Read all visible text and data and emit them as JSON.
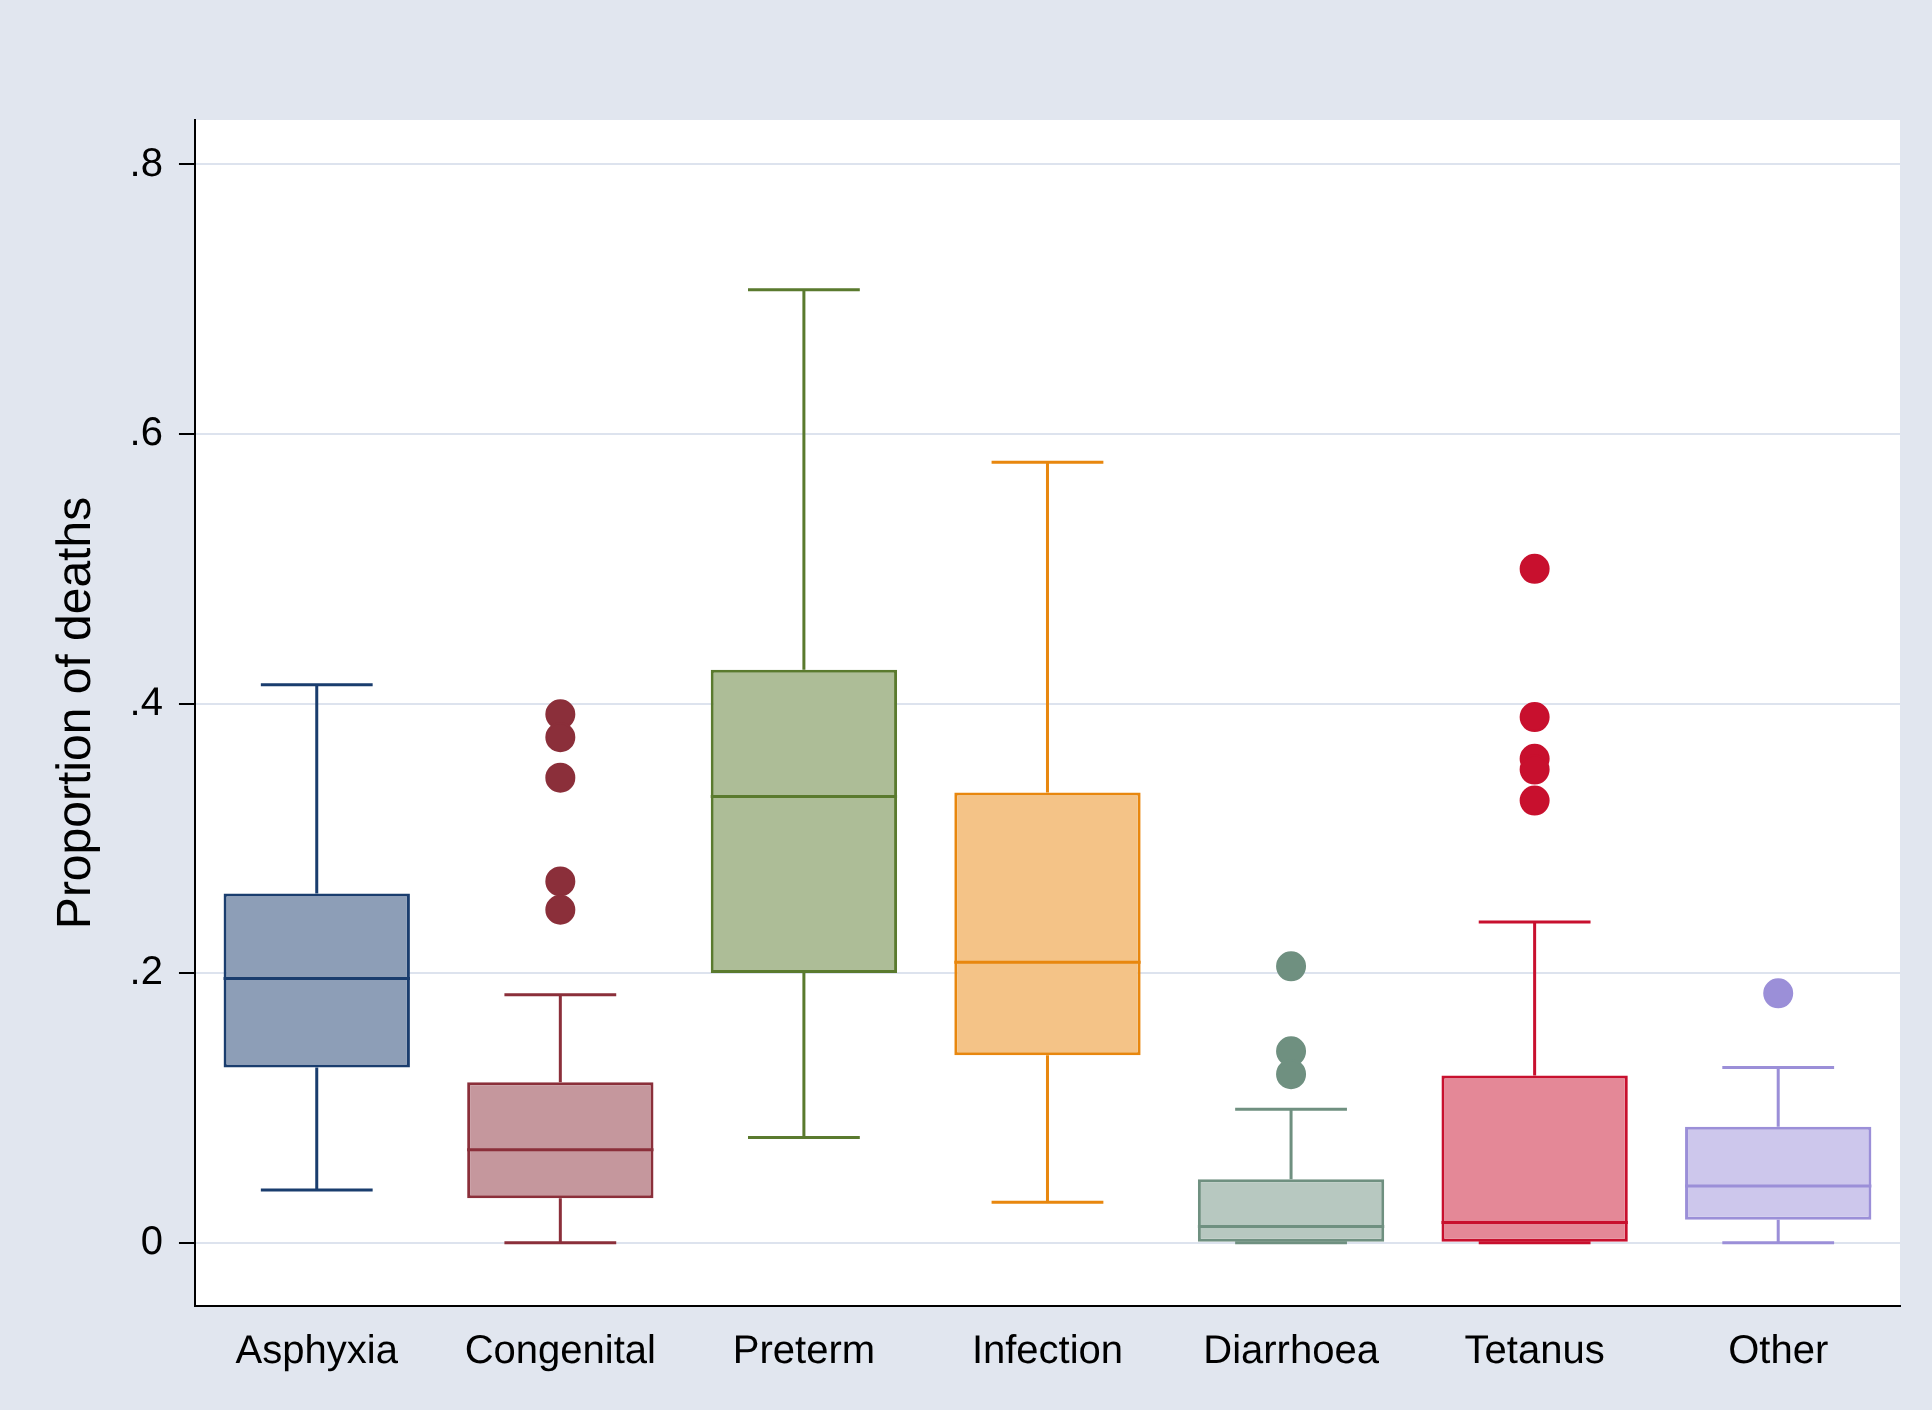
{
  "chart_data": {
    "type": "box",
    "ylabel": "Proportion of deaths",
    "categories": [
      "Asphyxia",
      "Congenital",
      "Preterm",
      "Infection",
      "Diarrhoea",
      "Tetanus",
      "Other"
    ],
    "colors": [
      "#1a3d6e",
      "#8b2f3a",
      "#5a7a2e",
      "#e8870e",
      "#6f9080",
      "#c8102e",
      "#9b8fd8"
    ],
    "boxes": [
      {
        "low": 0.039,
        "q1": 0.13,
        "median": 0.196,
        "q3": 0.259,
        "high": 0.414
      },
      {
        "low": 0,
        "q1": 0.033,
        "median": 0.069,
        "q3": 0.119,
        "high": 0.184,
        "outliers": [
          0.392,
          0.375,
          0.345,
          0.268,
          0.247
        ]
      },
      {
        "low": 0.078,
        "q1": 0.2,
        "median": 0.331,
        "q3": 0.425,
        "high": 0.707
      },
      {
        "low": 0.03,
        "q1": 0.139,
        "median": 0.208,
        "q3": 0.334,
        "high": 0.579
      },
      {
        "low": 0,
        "q1": 0,
        "median": 0.012,
        "q3": 0.047,
        "high": 0.099,
        "outliers": [
          0.205,
          0.142,
          0.125
        ]
      },
      {
        "low": 0,
        "q1": 0,
        "median": 0.015,
        "q3": 0.124,
        "high": 0.238,
        "outliers": [
          0.5,
          0.39,
          0.359,
          0.351,
          0.328
        ]
      },
      {
        "low": 0,
        "q1": 0.017,
        "median": 0.042,
        "q3": 0.086,
        "high": 0.13,
        "outliers": [
          0.185
        ]
      }
    ],
    "ylim": [
      -0.047,
      0.833
    ],
    "yticks": [
      0,
      {
        "value": 0.2,
        "label": ".2"
      },
      {
        "value": 0.4,
        "label": ".4"
      },
      {
        "value": 0.6,
        "label": ".6"
      },
      {
        "value": 0.8,
        "label": ".8"
      }
    ],
    "grid": "y"
  }
}
